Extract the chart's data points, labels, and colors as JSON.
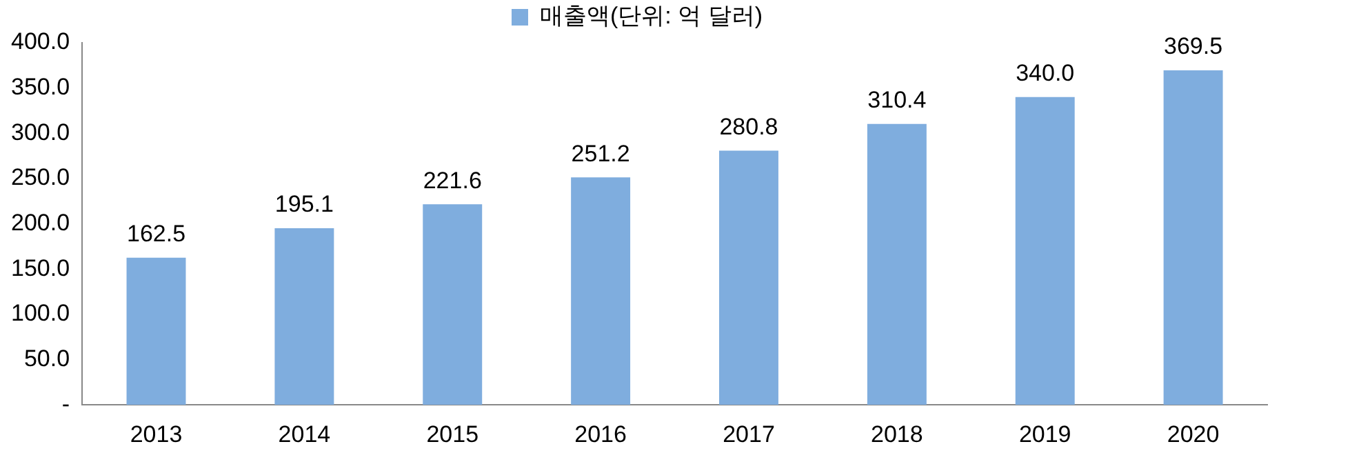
{
  "chart_data": {
    "type": "bar",
    "categories": [
      "2013",
      "2014",
      "2015",
      "2016",
      "2017",
      "2018",
      "2019",
      "2020"
    ],
    "series": [
      {
        "name": "매출액(단위: 억 달러)",
        "color": "#7fadde",
        "values": [
          162.5,
          195.1,
          221.6,
          251.2,
          280.8,
          310.4,
          340.0,
          369.5
        ]
      }
    ],
    "value_labels": [
      "162.5",
      "195.1",
      "221.6",
      "251.2",
      "280.8",
      "310.4",
      "340.0",
      "369.5"
    ],
    "ylim": [
      0,
      400
    ],
    "yticks": [
      {
        "value": 0,
        "label": "-"
      },
      {
        "value": 50,
        "label": "50.0"
      },
      {
        "value": 100,
        "label": "100.0"
      },
      {
        "value": 150,
        "label": "150.0"
      },
      {
        "value": 200,
        "label": "200.0"
      },
      {
        "value": 250,
        "label": "250.0"
      },
      {
        "value": 300,
        "label": "300.0"
      },
      {
        "value": 350,
        "label": "350.0"
      },
      {
        "value": 400,
        "label": "400.0"
      }
    ],
    "grid": false,
    "legend": "top"
  }
}
